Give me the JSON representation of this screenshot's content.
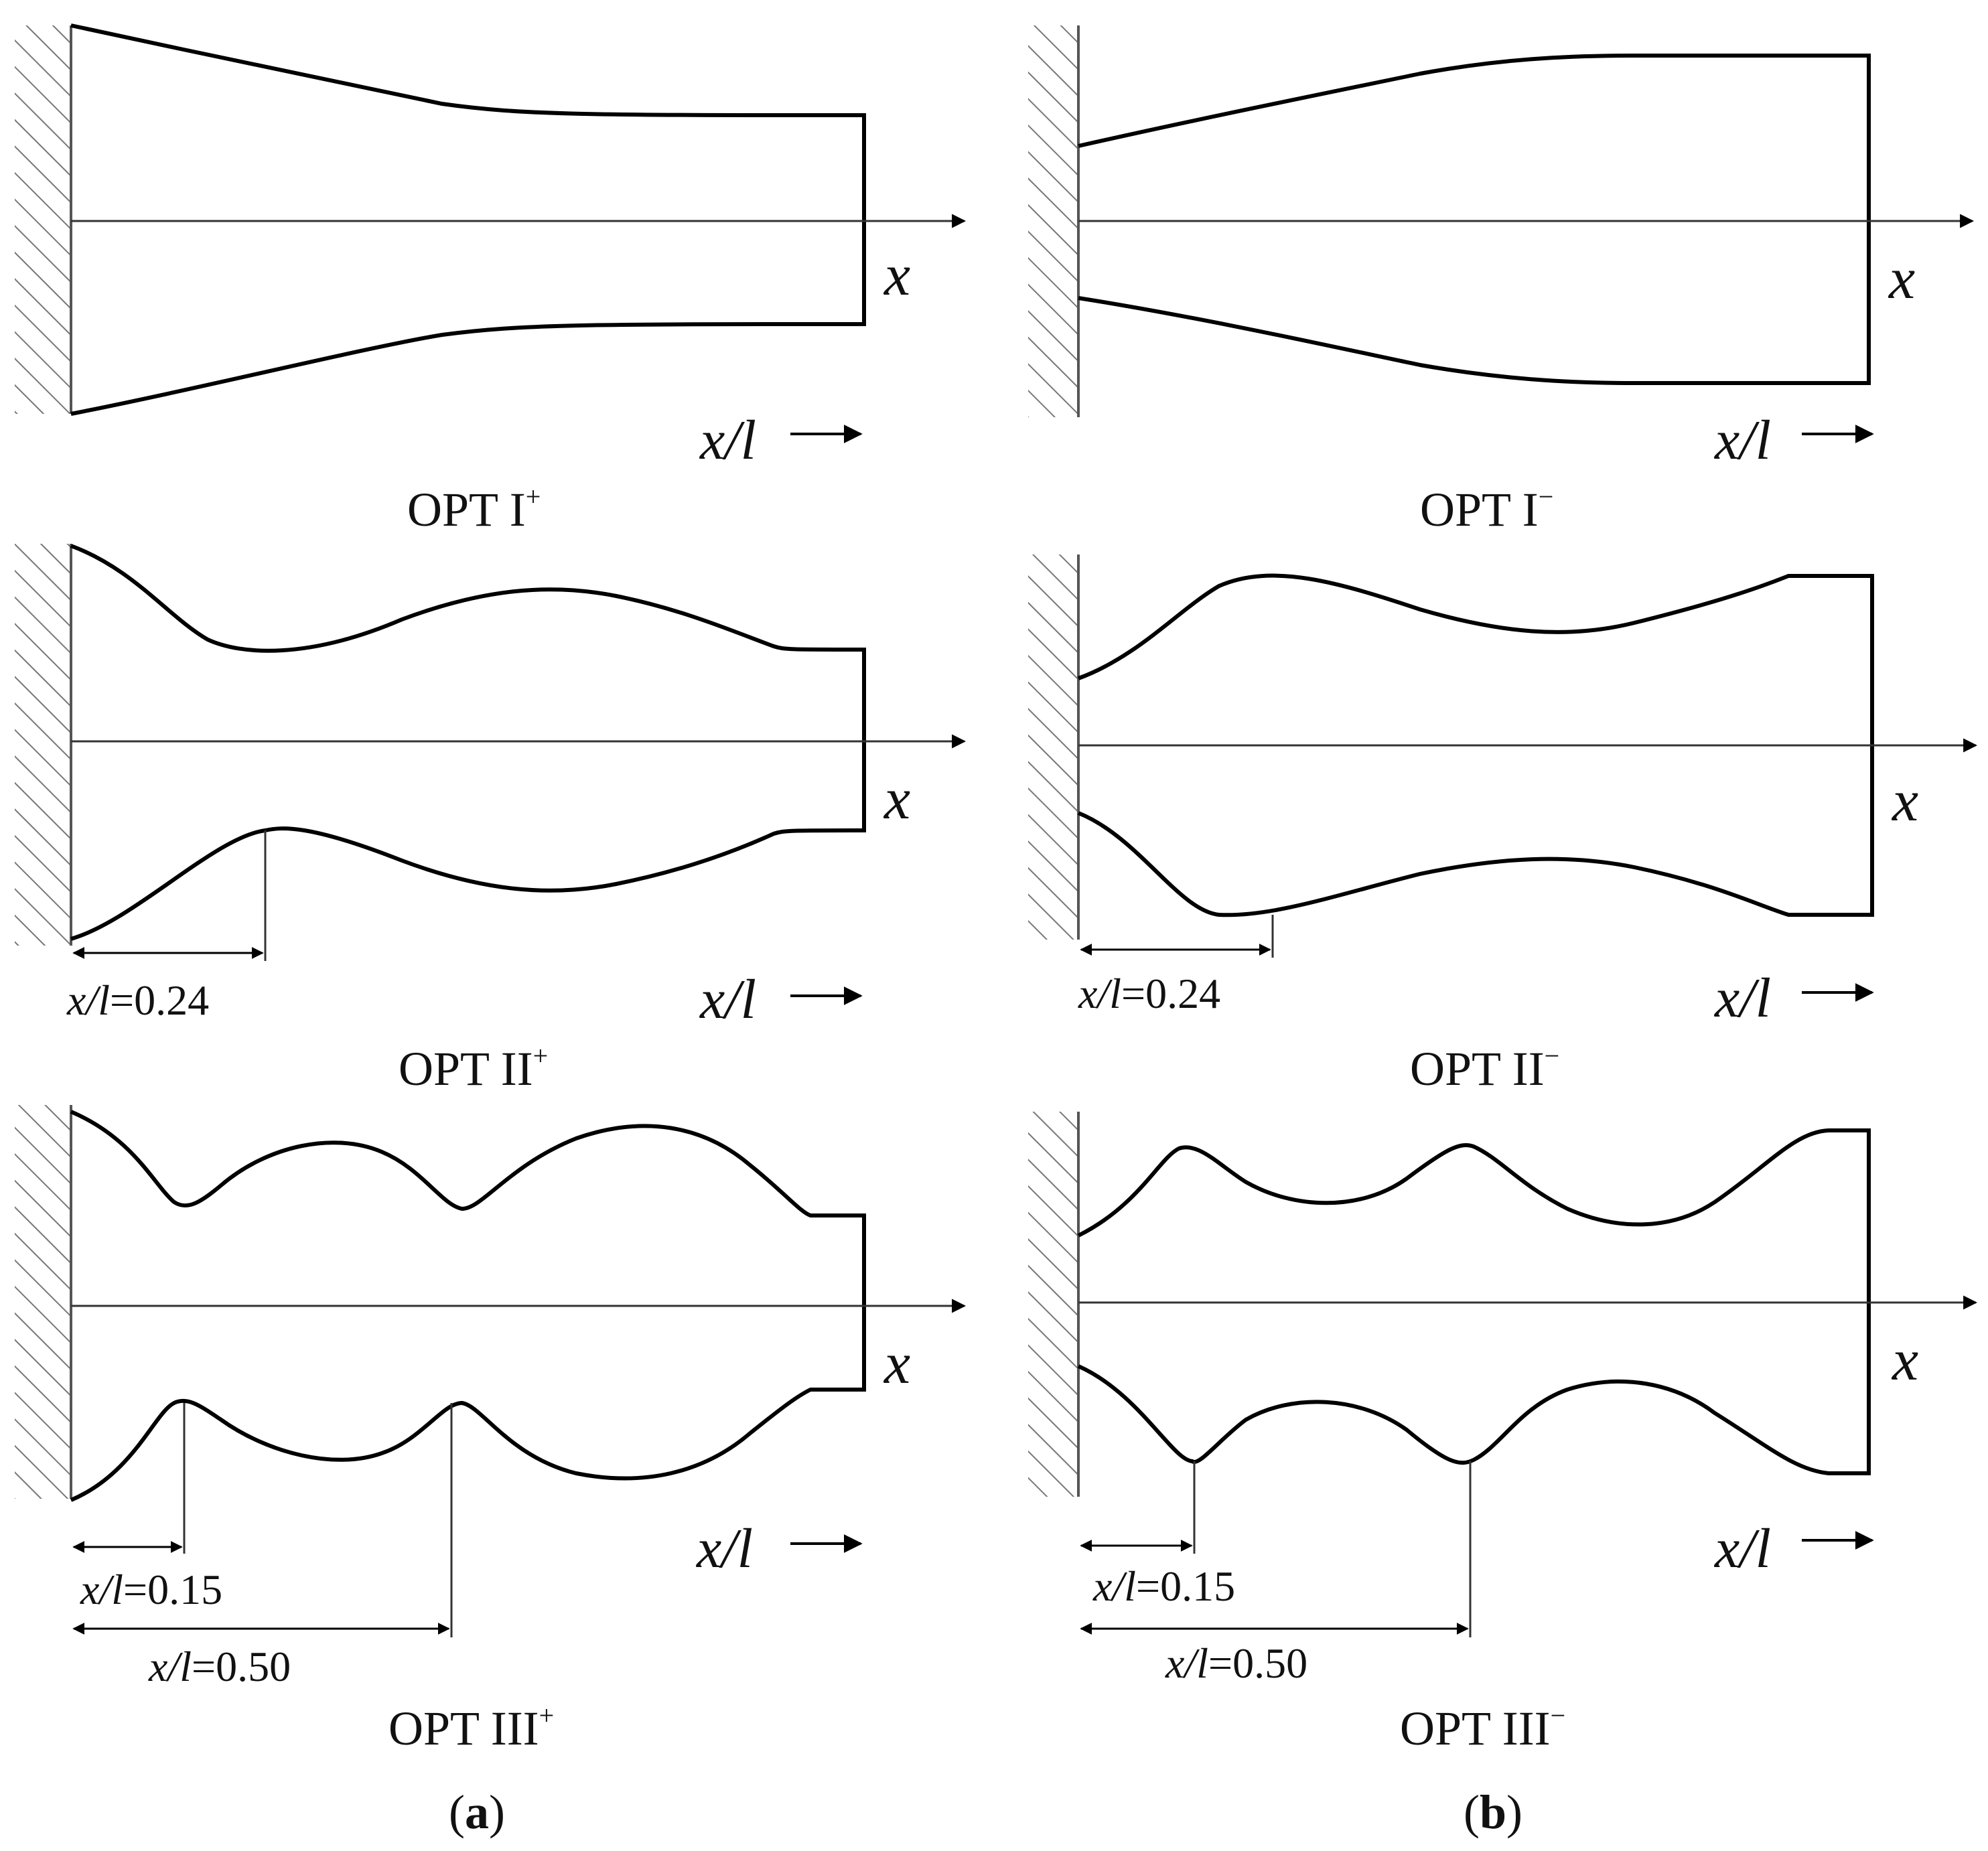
{
  "figure": {
    "panels": {
      "a_label": "a",
      "b_label": "b"
    },
    "axis": {
      "var": "x",
      "xl_label": "x/l"
    },
    "cells": [
      {
        "id": "opt1-plus",
        "caption_base": "OPT I",
        "caption_sup": "+",
        "dims": []
      },
      {
        "id": "opt1-minus",
        "caption_base": "OPT I",
        "caption_sup": "−",
        "dims": []
      },
      {
        "id": "opt2-plus",
        "caption_base": "OPT II",
        "caption_sup": "+",
        "dims": [
          {
            "ratio_label": "x/l",
            "value": "=0.24"
          }
        ]
      },
      {
        "id": "opt2-minus",
        "caption_base": "OPT II",
        "caption_sup": "−",
        "dims": [
          {
            "ratio_label": "x/l",
            "value": "=0.24"
          }
        ]
      },
      {
        "id": "opt3-plus",
        "caption_base": "OPT III",
        "caption_sup": "+",
        "dims": [
          {
            "ratio_label": "x/l",
            "value": "=0.15"
          },
          {
            "ratio_label": "x/l",
            "value": "=0.50"
          }
        ]
      },
      {
        "id": "opt3-minus",
        "caption_base": "OPT III",
        "caption_sup": "−",
        "dims": [
          {
            "ratio_label": "x/l",
            "value": "=0.15"
          },
          {
            "ratio_label": "x/l",
            "value": "=0.50"
          }
        ]
      }
    ]
  }
}
